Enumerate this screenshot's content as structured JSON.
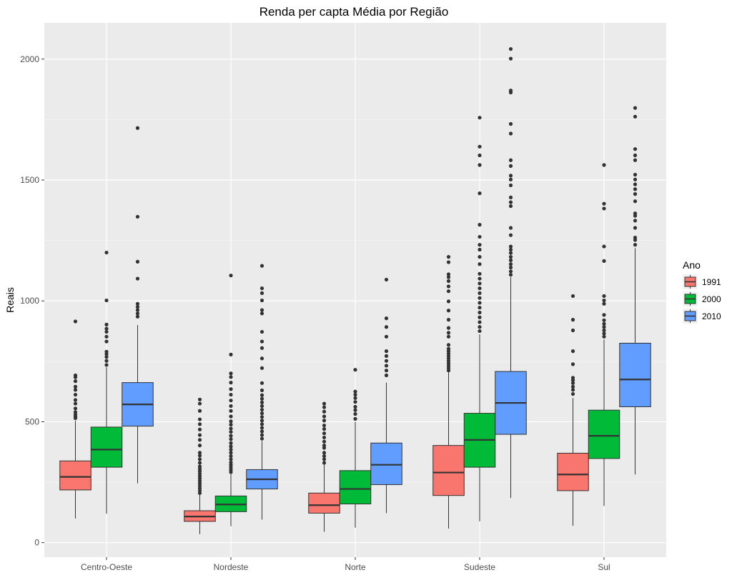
{
  "chart_data": {
    "type": "boxplot",
    "title": "Renda per capta Média por Região",
    "xlabel": "",
    "ylabel": "Reais",
    "ylim": [
      -60,
      2150
    ],
    "yticks": [
      0,
      500,
      1000,
      1500,
      2000
    ],
    "grid": true,
    "legend": {
      "title": "Ano",
      "position": "right"
    },
    "categories": [
      "Centro-Oeste",
      "Nordeste",
      "Norte",
      "Sudeste",
      "Sul"
    ],
    "series": [
      {
        "name": "1991",
        "color": "#F8766D",
        "boxes": [
          {
            "whisker_low": 100,
            "q1": 218,
            "median": 272,
            "q3": 338,
            "whisker_high": 505,
            "outliers": [
              515,
              522,
              530,
              540,
              555,
              575,
              590,
              612,
              632,
              645,
              668,
              684,
              692,
              915
            ]
          },
          {
            "whisker_low": 35,
            "q1": 88,
            "median": 108,
            "q3": 132,
            "whisker_high": 198,
            "outliers": [
              205,
              215,
              225,
              235,
              245,
              255,
              265,
              275,
              285,
              295,
              305,
              315,
              330,
              345,
              360,
              372,
              402,
              425,
              445,
              468,
              490,
              510,
              545,
              575,
              592
            ]
          },
          {
            "whisker_low": 45,
            "q1": 122,
            "median": 155,
            "q3": 205,
            "whisker_high": 322,
            "outliers": [
              330,
              345,
              358,
              372,
              392,
              402,
              418,
              435,
              452,
              470,
              485,
              505,
              522,
              542,
              560,
              575
            ]
          },
          {
            "whisker_low": 58,
            "q1": 195,
            "median": 290,
            "q3": 402,
            "whisker_high": 705,
            "outliers": [
              712,
              722,
              732,
              742,
              752,
              762,
              772,
              782,
              792,
              802,
              818,
              852,
              868,
              888,
              922,
              960,
              998,
              1040,
              1060,
              1082,
              1098,
              1110,
              1160,
              1182
            ]
          },
          {
            "whisker_low": 70,
            "q1": 215,
            "median": 282,
            "q3": 370,
            "whisker_high": 598,
            "outliers": [
              615,
              632,
              645,
              660,
              672,
              682,
              738,
              792,
              878,
              922,
              1020
            ]
          }
        ]
      },
      {
        "name": "2000",
        "color": "#00BA38",
        "boxes": [
          {
            "whisker_low": 120,
            "q1": 312,
            "median": 385,
            "q3": 478,
            "whisker_high": 725,
            "outliers": [
              735,
              752,
              768,
              780,
              790,
              832,
              852,
              872,
              885,
              902,
              1002,
              1200
            ]
          },
          {
            "whisker_low": 68,
            "q1": 128,
            "median": 158,
            "q3": 193,
            "whisker_high": 285,
            "outliers": [
              292,
              302,
              312,
              322,
              332,
              345,
              358,
              372,
              385,
              398,
              412,
              428,
              442,
              458,
              472,
              488,
              502,
              522,
              545,
              565,
              588,
              612,
              635,
              662,
              685,
              700,
              778,
              1105
            ]
          },
          {
            "whisker_low": 62,
            "q1": 160,
            "median": 222,
            "q3": 298,
            "whisker_high": 500,
            "outliers": [
              512,
              532,
              548,
              562,
              582,
              598,
              612,
              625,
              715
            ]
          },
          {
            "whisker_low": 88,
            "q1": 312,
            "median": 425,
            "q3": 535,
            "whisker_high": 862,
            "outliers": [
              875,
              892,
              912,
              932,
              952,
              972,
              992,
              1012,
              1032,
              1052,
              1072,
              1092,
              1112,
              1152,
              1182,
              1212,
              1232,
              1265,
              1315,
              1445,
              1562,
              1602,
              1638,
              1758
            ]
          },
          {
            "whisker_low": 152,
            "q1": 348,
            "median": 442,
            "q3": 548,
            "whisker_high": 840,
            "outliers": [
              852,
              865,
              878,
              892,
              905,
              920,
              942,
              988,
              1002,
              1020,
              1165,
              1225,
              1382,
              1402,
              1562
            ]
          }
        ]
      },
      {
        "name": "2010",
        "color": "#619CFF",
        "boxes": [
          {
            "whisker_low": 245,
            "q1": 482,
            "median": 572,
            "q3": 662,
            "whisker_high": 900,
            "outliers": [
              935,
              948,
              962,
              975,
              988,
              1092,
              1162,
              1348,
              1715
            ]
          },
          {
            "whisker_low": 95,
            "q1": 222,
            "median": 262,
            "q3": 302,
            "whisker_high": 420,
            "outliers": [
              430,
              445,
              460,
              475,
              490,
              505,
              520,
              535,
              550,
              565,
              580,
              595,
              610,
              630,
              660,
              722,
              762,
              805,
              832,
              872,
              948,
              962,
              1002,
              1032,
              1052,
              1145
            ]
          },
          {
            "whisker_low": 122,
            "q1": 240,
            "median": 322,
            "q3": 412,
            "whisker_high": 662,
            "outliers": [
              692,
              712,
              732,
              752,
              772,
              792,
              852,
              892,
              928,
              1088
            ]
          },
          {
            "whisker_low": 185,
            "q1": 448,
            "median": 578,
            "q3": 708,
            "whisker_high": 1098,
            "outliers": [
              1108,
              1122,
              1138,
              1152,
              1168,
              1182,
              1198,
              1212,
              1225,
              1272,
              1302,
              1392,
              1408,
              1428,
              1478,
              1502,
              1518,
              1558,
              1582,
              1692,
              1732,
              1862,
              1870,
              2002,
              2042
            ]
          },
          {
            "whisker_low": 282,
            "q1": 562,
            "median": 675,
            "q3": 825,
            "whisker_high": 1218,
            "outliers": [
              1232,
              1252,
              1262,
              1302,
              1332,
              1352,
              1362,
              1412,
              1442,
              1462,
              1482,
              1502,
              1522,
              1582,
              1602,
              1628,
              1762,
              1798
            ]
          }
        ]
      }
    ]
  }
}
